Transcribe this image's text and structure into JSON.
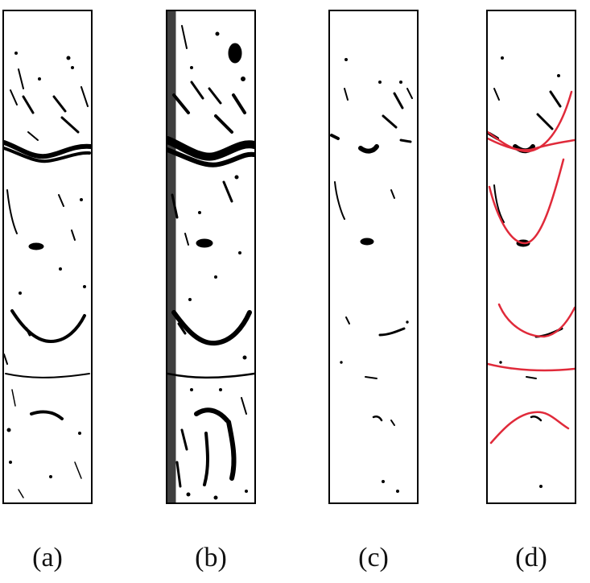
{
  "panels": [
    {
      "label": "(a)",
      "style": "binary-thresholded crack image"
    },
    {
      "label": "(b)",
      "style": "noisy binary crack image"
    },
    {
      "label": "(c)",
      "style": "filtered crack image"
    },
    {
      "label": "(d)",
      "style": "filtered image with crack outlines"
    }
  ],
  "colors": {
    "ink": "#000000",
    "overlay": "#e02a3a",
    "background": "#ffffff"
  }
}
